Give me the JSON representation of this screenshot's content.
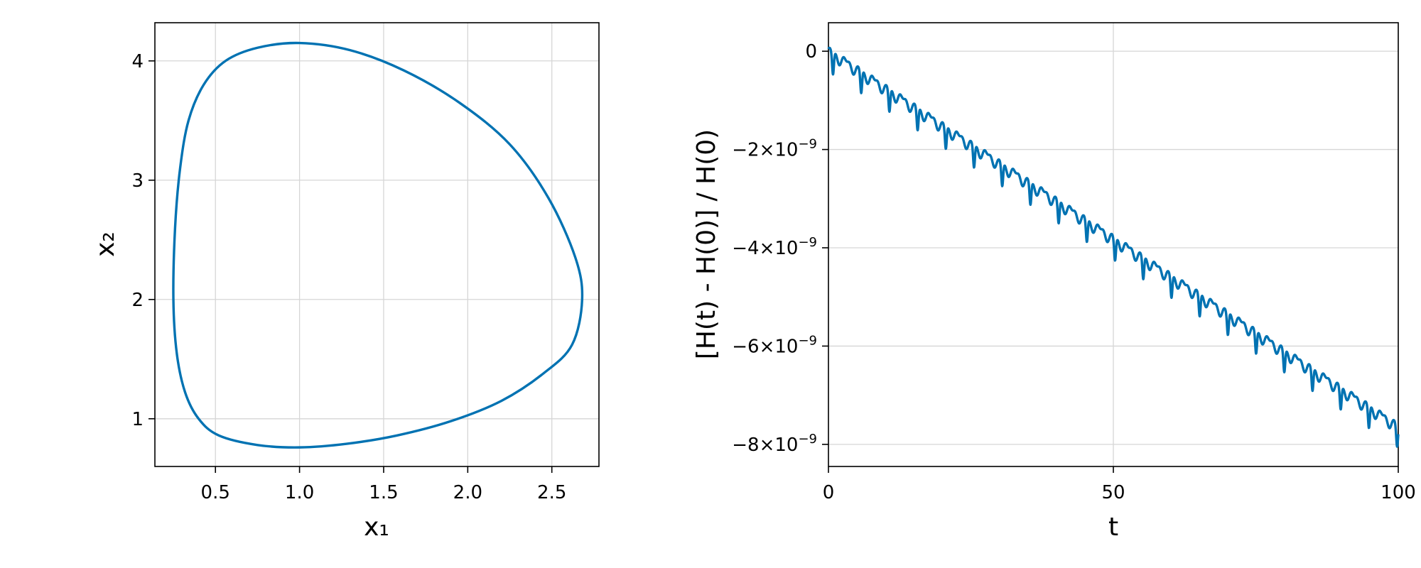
{
  "chart_data": [
    {
      "type": "line",
      "xlabel": "x₁",
      "ylabel": "x₂",
      "xlim": [
        0.14,
        2.78
      ],
      "ylim": [
        0.6,
        4.32
      ],
      "xticks": [
        {
          "value": 0.5,
          "label": "0.5"
        },
        {
          "value": 1.0,
          "label": "1.0"
        },
        {
          "value": 1.5,
          "label": "1.5"
        },
        {
          "value": 2.0,
          "label": "2.0"
        },
        {
          "value": 2.5,
          "label": "2.5"
        }
      ],
      "yticks": [
        {
          "value": 1,
          "label": "1"
        },
        {
          "value": 2,
          "label": "2"
        },
        {
          "value": 3,
          "label": "3"
        },
        {
          "value": 4,
          "label": "4"
        }
      ],
      "grid": true,
      "series_color": "#0072b2",
      "series": [
        {
          "x": [
            0.25,
            0.26,
            0.29,
            0.34,
            0.43,
            0.56,
            0.75,
            1.0,
            1.3,
            1.62,
            1.95,
            2.25,
            2.48,
            2.64,
            2.68,
            2.62,
            2.45,
            2.2,
            1.9,
            1.58,
            1.28,
            1.0,
            0.75,
            0.52,
            0.4,
            0.32,
            0.27,
            0.25
          ],
          "y": [
            2.0,
            2.6,
            3.1,
            3.5,
            3.8,
            4.0,
            4.11,
            4.15,
            4.09,
            3.92,
            3.65,
            3.3,
            2.85,
            2.35,
            2.0,
            1.62,
            1.38,
            1.15,
            0.98,
            0.86,
            0.79,
            0.76,
            0.78,
            0.86,
            1.0,
            1.22,
            1.55,
            2.0
          ]
        }
      ]
    },
    {
      "type": "line",
      "xlabel": "t",
      "ylabel": "[H(t) - H(0)] / H(0)",
      "xlim": [
        0,
        100
      ],
      "ylim": [
        -8.45e-09,
        5.8e-10
      ],
      "xticks": [
        {
          "value": 0,
          "label": "0"
        },
        {
          "value": 50,
          "label": "50"
        },
        {
          "value": 100,
          "label": "100"
        }
      ],
      "yticks": [
        {
          "value": 0,
          "base": "0",
          "exp": ""
        },
        {
          "value": -2e-09,
          "base": "−2×10",
          "exp": "−9"
        },
        {
          "value": -4e-09,
          "base": "−4×10",
          "exp": "−9"
        },
        {
          "value": -6e-09,
          "base": "−6×10",
          "exp": "−9"
        },
        {
          "value": -8e-09,
          "base": "−8×10",
          "exp": "−9"
        }
      ],
      "grid": true,
      "series_color": "#0072b2",
      "trend": {
        "start": 0.0,
        "end": -7.65e-09
      },
      "period": 4.95,
      "spike_depth": 4.5e-10
    }
  ]
}
